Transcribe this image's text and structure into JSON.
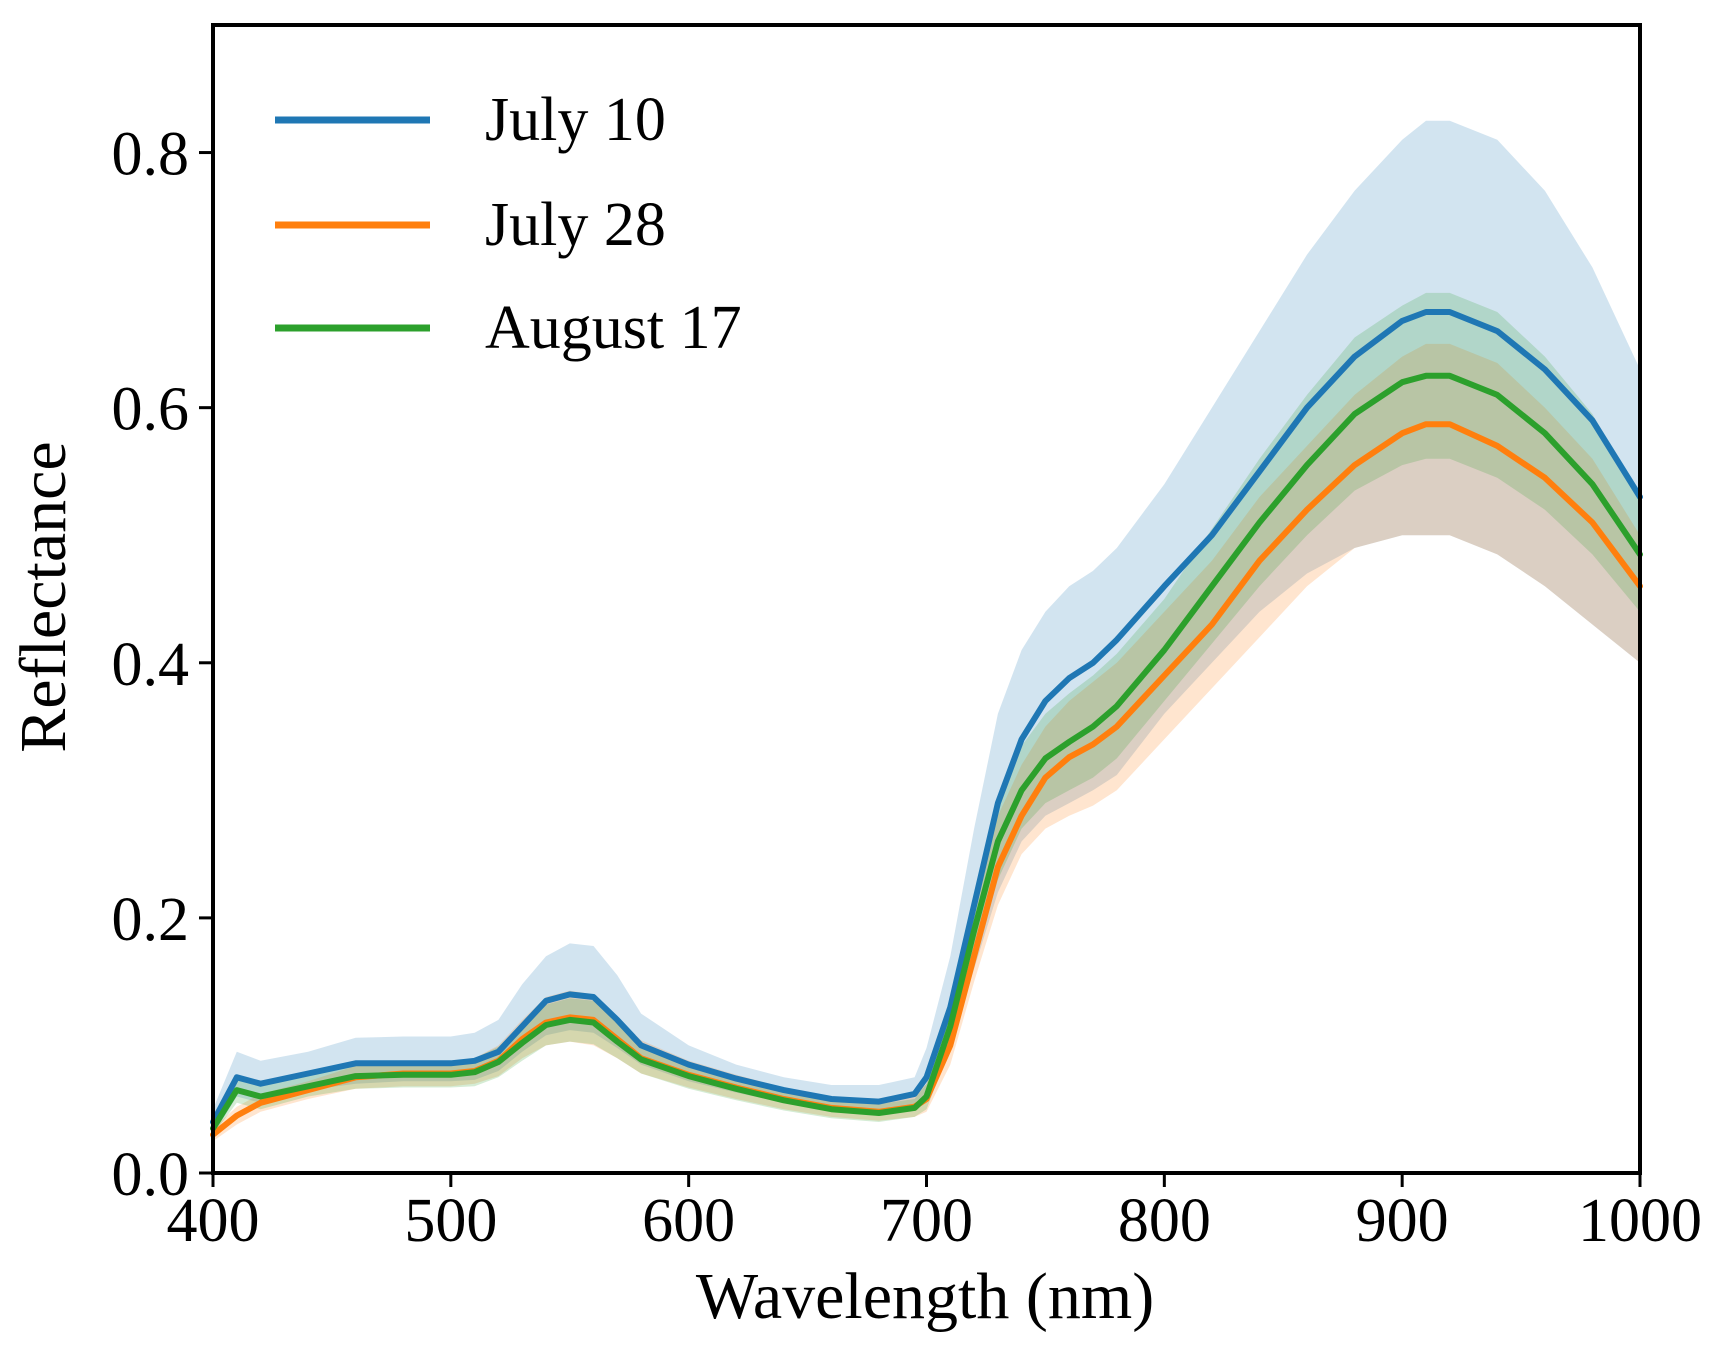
{
  "chart_data": {
    "type": "line",
    "title": "",
    "xlabel": "Wavelength (nm)",
    "ylabel": "Reflectance",
    "xlim": [
      400,
      1000
    ],
    "ylim": [
      0,
      0.9
    ],
    "xticks": [
      400,
      500,
      600,
      700,
      800,
      900,
      1000
    ],
    "xtick_labels": [
      "400",
      "500",
      "600",
      "700",
      "800",
      "900",
      "1000"
    ],
    "yticks": [
      0.0,
      0.2,
      0.4,
      0.6,
      0.8
    ],
    "ytick_labels": [
      "0.0",
      "0.2",
      "0.4",
      "0.6",
      "0.8"
    ],
    "grid": false,
    "legend_position": "top-left",
    "x": [
      400,
      410,
      420,
      440,
      460,
      480,
      500,
      510,
      520,
      530,
      540,
      550,
      560,
      570,
      580,
      600,
      620,
      640,
      660,
      680,
      695,
      700,
      710,
      720,
      730,
      740,
      750,
      760,
      770,
      780,
      800,
      820,
      840,
      860,
      880,
      900,
      910,
      920,
      940,
      960,
      980,
      1000
    ],
    "series": [
      {
        "name": "July 10",
        "color": "#1f77b4",
        "values": [
          0.04,
          0.075,
          0.07,
          0.078,
          0.086,
          0.086,
          0.086,
          0.088,
          0.095,
          0.115,
          0.135,
          0.14,
          0.138,
          0.12,
          0.1,
          0.085,
          0.074,
          0.065,
          0.058,
          0.056,
          0.062,
          0.075,
          0.13,
          0.21,
          0.29,
          0.34,
          0.37,
          0.388,
          0.4,
          0.418,
          0.46,
          0.5,
          0.55,
          0.6,
          0.64,
          0.668,
          0.675,
          0.675,
          0.66,
          0.63,
          0.59,
          0.53
        ],
        "lower": [
          0.03,
          0.06,
          0.055,
          0.065,
          0.07,
          0.072,
          0.072,
          0.073,
          0.08,
          0.095,
          0.108,
          0.112,
          0.11,
          0.098,
          0.085,
          0.072,
          0.063,
          0.055,
          0.049,
          0.046,
          0.05,
          0.055,
          0.1,
          0.16,
          0.22,
          0.26,
          0.28,
          0.29,
          0.3,
          0.312,
          0.36,
          0.4,
          0.44,
          0.47,
          0.49,
          0.5,
          0.5,
          0.5,
          0.485,
          0.46,
          0.43,
          0.4
        ],
        "upper": [
          0.05,
          0.095,
          0.088,
          0.095,
          0.106,
          0.107,
          0.107,
          0.11,
          0.12,
          0.148,
          0.17,
          0.18,
          0.178,
          0.155,
          0.125,
          0.1,
          0.085,
          0.075,
          0.069,
          0.069,
          0.075,
          0.098,
          0.17,
          0.27,
          0.36,
          0.41,
          0.44,
          0.46,
          0.472,
          0.49,
          0.54,
          0.6,
          0.66,
          0.72,
          0.77,
          0.81,
          0.825,
          0.825,
          0.81,
          0.77,
          0.71,
          0.63
        ]
      },
      {
        "name": "July 28",
        "color": "#ff7f0e",
        "values": [
          0.03,
          0.045,
          0.055,
          0.065,
          0.075,
          0.078,
          0.078,
          0.08,
          0.088,
          0.105,
          0.118,
          0.122,
          0.12,
          0.105,
          0.09,
          0.077,
          0.067,
          0.058,
          0.051,
          0.048,
          0.052,
          0.058,
          0.1,
          0.17,
          0.24,
          0.28,
          0.31,
          0.326,
          0.336,
          0.35,
          0.39,
          0.43,
          0.48,
          0.52,
          0.555,
          0.58,
          0.587,
          0.587,
          0.57,
          0.545,
          0.51,
          0.46
        ],
        "lower": [
          0.025,
          0.038,
          0.048,
          0.058,
          0.066,
          0.068,
          0.068,
          0.07,
          0.076,
          0.09,
          0.1,
          0.103,
          0.1,
          0.09,
          0.078,
          0.067,
          0.058,
          0.05,
          0.044,
          0.041,
          0.044,
          0.048,
          0.085,
          0.15,
          0.21,
          0.25,
          0.27,
          0.28,
          0.288,
          0.3,
          0.34,
          0.38,
          0.42,
          0.46,
          0.49,
          0.5,
          0.5,
          0.5,
          0.485,
          0.46,
          0.43,
          0.4
        ],
        "upper": [
          0.035,
          0.052,
          0.062,
          0.072,
          0.084,
          0.088,
          0.088,
          0.09,
          0.1,
          0.12,
          0.138,
          0.143,
          0.14,
          0.122,
          0.104,
          0.088,
          0.077,
          0.067,
          0.059,
          0.056,
          0.061,
          0.07,
          0.125,
          0.2,
          0.28,
          0.32,
          0.35,
          0.37,
          0.385,
          0.4,
          0.44,
          0.48,
          0.53,
          0.57,
          0.61,
          0.64,
          0.65,
          0.65,
          0.635,
          0.6,
          0.56,
          0.5
        ]
      },
      {
        "name": "August 17",
        "color": "#2ca02c",
        "values": [
          0.035,
          0.065,
          0.06,
          0.068,
          0.076,
          0.077,
          0.077,
          0.079,
          0.087,
          0.102,
          0.116,
          0.12,
          0.118,
          0.103,
          0.089,
          0.076,
          0.066,
          0.057,
          0.05,
          0.047,
          0.051,
          0.06,
          0.115,
          0.19,
          0.26,
          0.3,
          0.325,
          0.338,
          0.35,
          0.366,
          0.41,
          0.46,
          0.51,
          0.555,
          0.595,
          0.62,
          0.625,
          0.625,
          0.61,
          0.58,
          0.54,
          0.485
        ],
        "lower": [
          0.03,
          0.055,
          0.05,
          0.06,
          0.066,
          0.067,
          0.067,
          0.068,
          0.075,
          0.088,
          0.1,
          0.103,
          0.101,
          0.09,
          0.078,
          0.066,
          0.057,
          0.049,
          0.043,
          0.04,
          0.044,
          0.05,
          0.098,
          0.165,
          0.23,
          0.27,
          0.29,
          0.3,
          0.31,
          0.325,
          0.37,
          0.415,
          0.46,
          0.5,
          0.535,
          0.555,
          0.56,
          0.56,
          0.545,
          0.52,
          0.485,
          0.44
        ],
        "upper": [
          0.04,
          0.075,
          0.07,
          0.077,
          0.086,
          0.087,
          0.087,
          0.09,
          0.099,
          0.116,
          0.132,
          0.137,
          0.135,
          0.117,
          0.1,
          0.086,
          0.075,
          0.065,
          0.057,
          0.054,
          0.058,
          0.07,
          0.132,
          0.215,
          0.29,
          0.335,
          0.36,
          0.376,
          0.39,
          0.407,
          0.45,
          0.505,
          0.56,
          0.61,
          0.655,
          0.68,
          0.69,
          0.69,
          0.675,
          0.64,
          0.595,
          0.53
        ]
      }
    ]
  }
}
